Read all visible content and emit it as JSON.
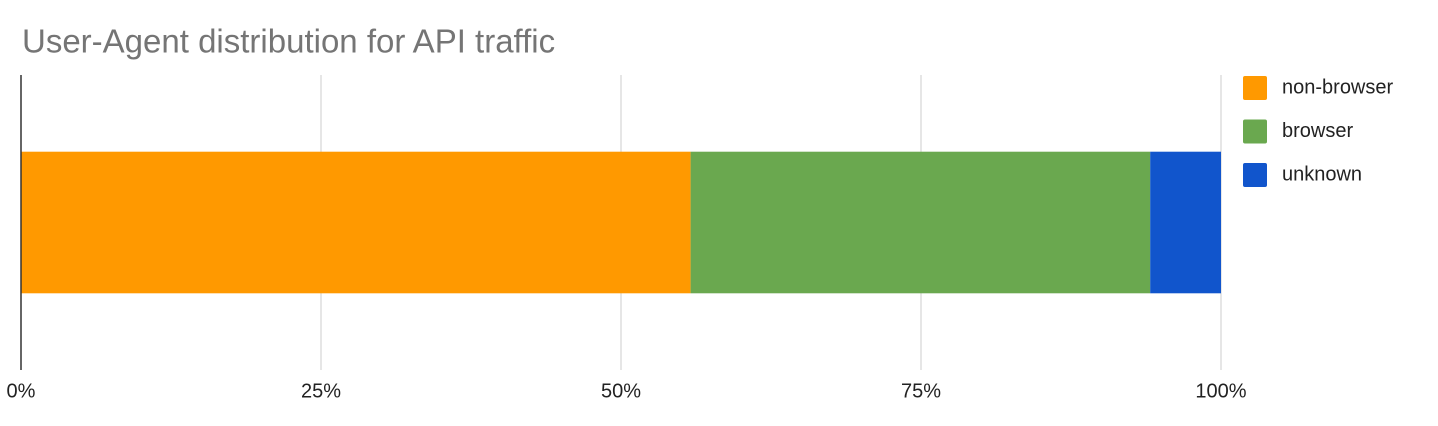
{
  "chart_data": {
    "type": "bar",
    "orientation": "horizontal",
    "stacked": true,
    "title": "User-Agent distribution for API traffic",
    "categories": [
      null
    ],
    "series": [
      {
        "name": "non-browser",
        "color": "#ff9900",
        "values": [
          55.8
        ]
      },
      {
        "name": "browser",
        "color": "#6aa84f",
        "values": [
          38.3
        ]
      },
      {
        "name": "unknown",
        "color": "#1155cc",
        "values": [
          5.9
        ]
      }
    ],
    "xlim": [
      0,
      100
    ],
    "xticks": [
      {
        "value": 0,
        "label": "0%"
      },
      {
        "value": 25,
        "label": "25%"
      },
      {
        "value": 50,
        "label": "50%"
      },
      {
        "value": 75,
        "label": "75%"
      },
      {
        "value": 100,
        "label": "100%"
      }
    ],
    "grid": true,
    "legend": "right"
  }
}
